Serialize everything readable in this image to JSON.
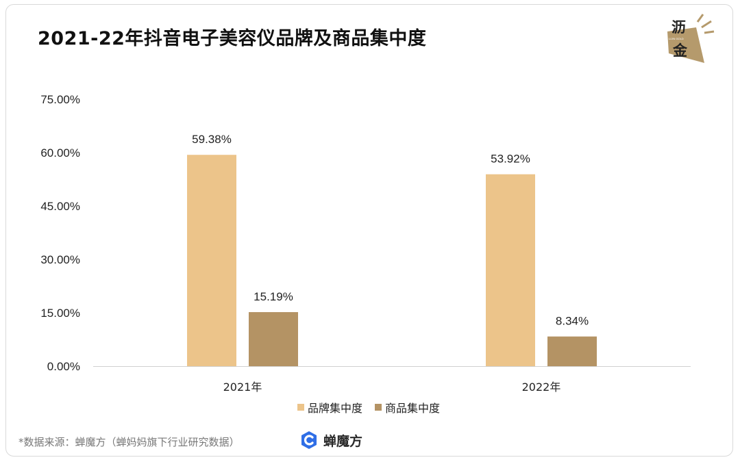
{
  "title": "2021-22年抖音电子美容仪品牌及商品集中度",
  "logo": {
    "char_top": "沥",
    "char_bottom": "金",
    "tagline": "LIJIN GOLD",
    "color": "#b59a6c"
  },
  "legend": [
    {
      "label": "品牌集中度",
      "color": "#ecc48a"
    },
    {
      "label": "商品集中度",
      "color": "#b49364"
    }
  ],
  "source": "*数据来源：蝉魔方（蝉妈妈旗下行业研究数据）",
  "brand": {
    "name": "蝉魔方",
    "icon": "chanmofang-logo-icon",
    "color": "#2f6ee6"
  },
  "chart_data": {
    "type": "bar",
    "categories": [
      "2021年",
      "2022年"
    ],
    "series": [
      {
        "name": "品牌集中度",
        "values": [
          59.38,
          53.92
        ],
        "labels": [
          "59.38%",
          "53.92%"
        ],
        "color": "#ecc48a"
      },
      {
        "name": "商品集中度",
        "values": [
          15.19,
          8.34
        ],
        "labels": [
          "15.19%",
          "8.34%"
        ],
        "color": "#b49364"
      }
    ],
    "yticks": [
      "0.00%",
      "15.00%",
      "30.00%",
      "45.00%",
      "60.00%",
      "75.00%"
    ],
    "ylim": [
      0,
      75
    ],
    "grid": false
  }
}
